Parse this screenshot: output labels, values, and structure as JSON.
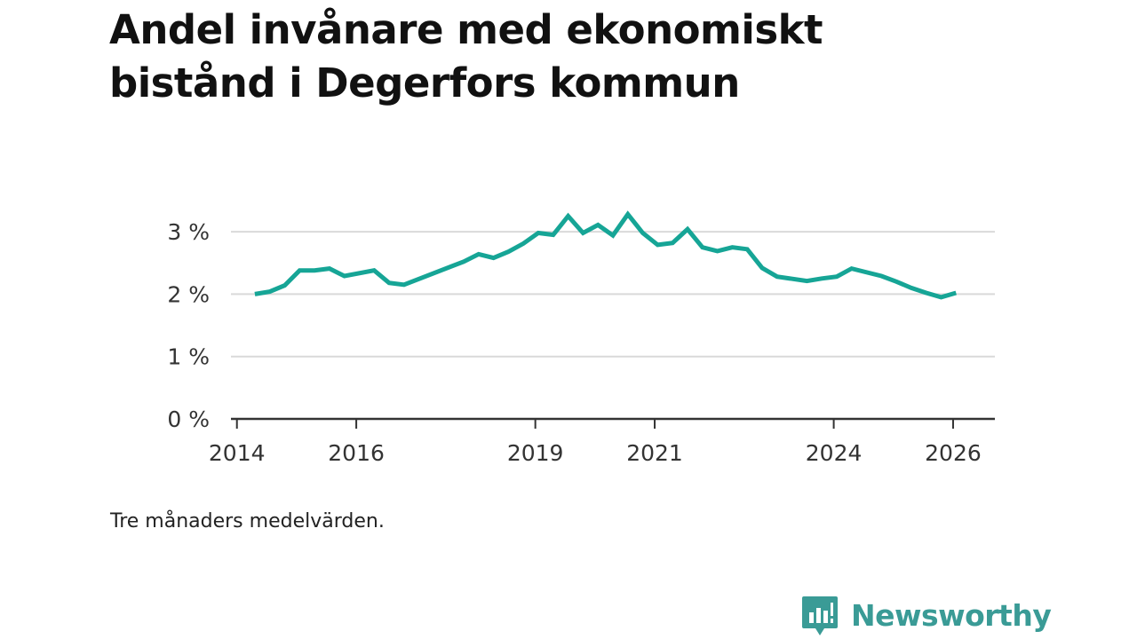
{
  "chart_data": {
    "type": "line",
    "title": "Andel invånare med ekonomiskt bistånd i Degerfors kommun",
    "note": "Tre månaders medelvärden.",
    "xlabel": "",
    "ylabel": "",
    "xlim": [
      2013.9,
      2026.7
    ],
    "ylim": [
      0,
      3.3
    ],
    "x_ticks": [
      {
        "value": 2014,
        "label": "2014"
      },
      {
        "value": 2016,
        "label": "2016"
      },
      {
        "value": 2019,
        "label": "2019"
      },
      {
        "value": 2021,
        "label": "2021"
      },
      {
        "value": 2024,
        "label": "2024"
      },
      {
        "value": 2026,
        "label": "2026"
      }
    ],
    "y_ticks": [
      {
        "value": 0,
        "label": "0 %"
      },
      {
        "value": 1,
        "label": "1 %"
      },
      {
        "value": 2,
        "label": "2 %"
      },
      {
        "value": 3,
        "label": "3 %"
      }
    ],
    "grid": true,
    "color": "#16a596",
    "series": [
      {
        "name": "Andel invånare med ekonomiskt bistånd",
        "x": [
          2014.3,
          2014.55,
          2014.8,
          2015.05,
          2015.3,
          2015.55,
          2015.8,
          2016.3,
          2016.55,
          2016.8,
          2017.8,
          2018.05,
          2018.3,
          2018.55,
          2018.8,
          2019.05,
          2019.3,
          2019.55,
          2019.8,
          2020.05,
          2020.3,
          2020.55,
          2020.8,
          2021.05,
          2021.3,
          2021.55,
          2021.8,
          2022.05,
          2022.3,
          2022.55,
          2022.8,
          2023.05,
          2023.55,
          2023.8,
          2024.05,
          2024.3,
          2024.8,
          2025.05,
          2025.3,
          2025.55,
          2025.8,
          2026.05
        ],
        "values": [
          2.0,
          2.04,
          2.14,
          2.38,
          2.38,
          2.41,
          2.29,
          2.38,
          2.18,
          2.15,
          2.52,
          2.64,
          2.58,
          2.68,
          2.81,
          2.98,
          2.95,
          3.25,
          2.98,
          3.11,
          2.94,
          3.28,
          2.98,
          2.79,
          2.82,
          3.04,
          2.75,
          2.69,
          2.75,
          2.72,
          2.42,
          2.28,
          2.21,
          2.25,
          2.28,
          2.41,
          2.29,
          2.2,
          2.1,
          2.02,
          1.95,
          2.02
        ]
      }
    ]
  },
  "footer": {
    "brand": "Newsworthy",
    "colors": {
      "brand": "#3a9b96"
    }
  }
}
